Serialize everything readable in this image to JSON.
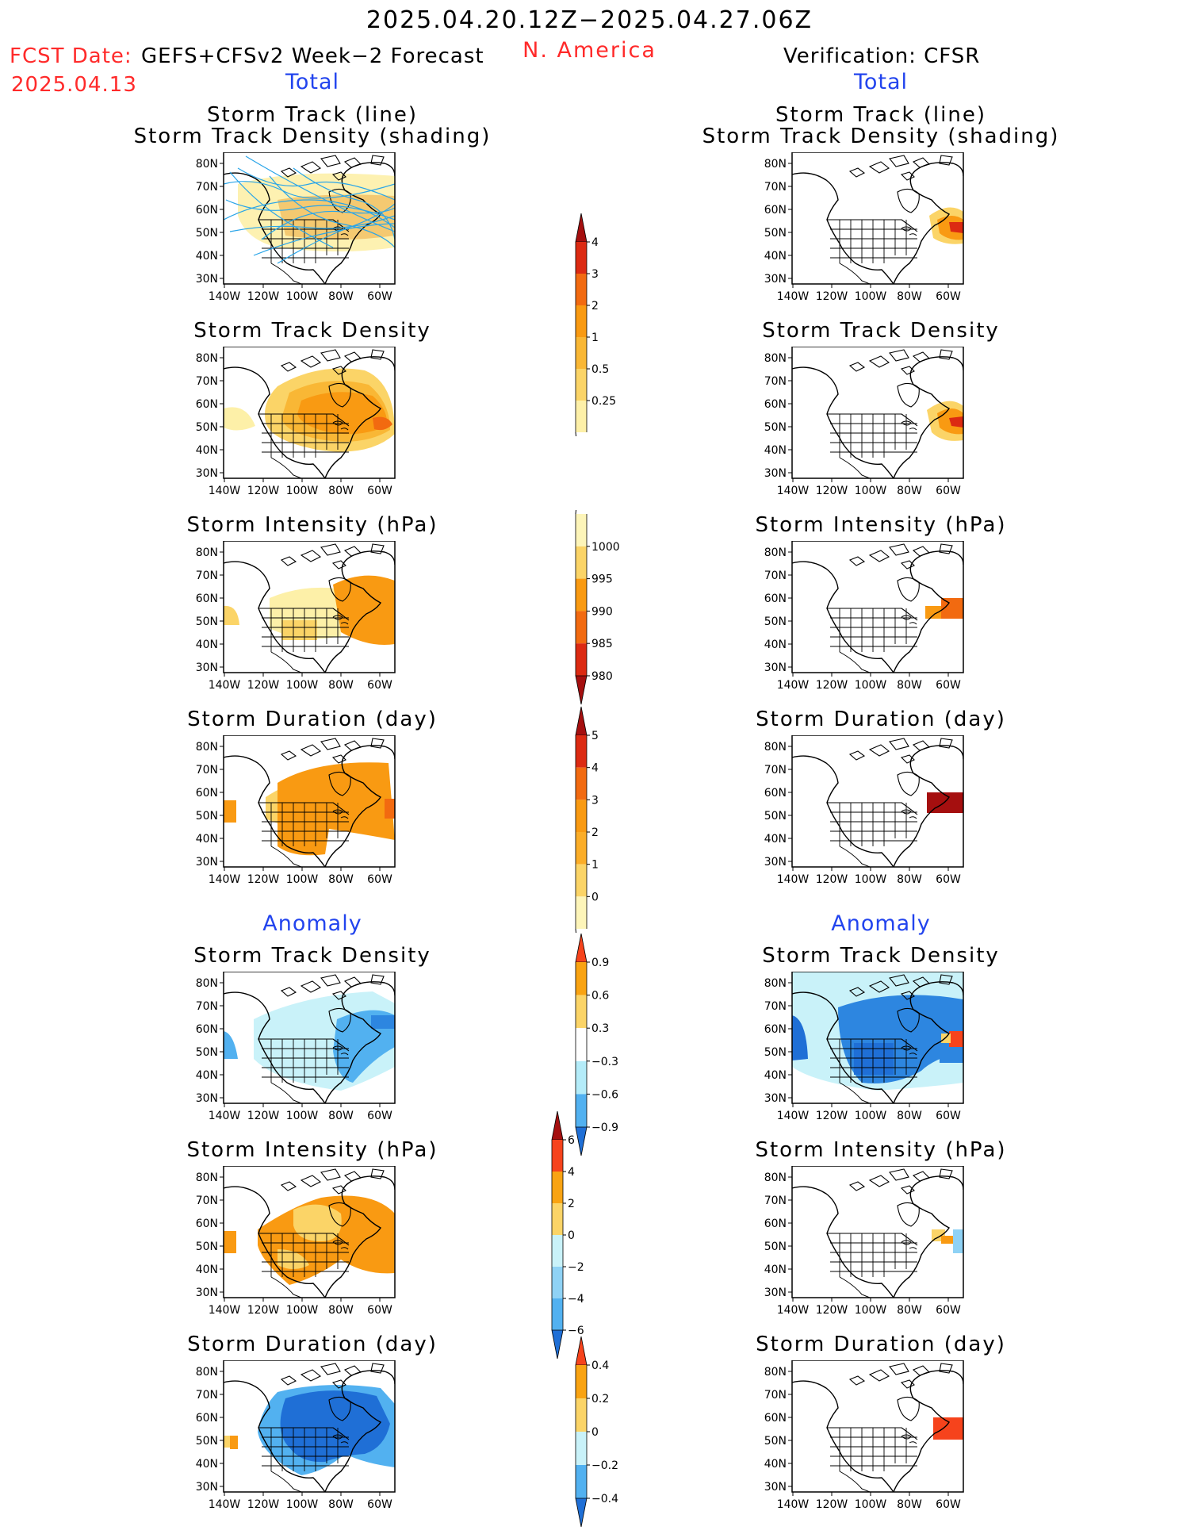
{
  "header": {
    "date_range": "2025.04.20.12Z−2025.04.27.06Z",
    "region": "N. America",
    "fcst_label": "FCST Date:",
    "fcst_model": "GEFS+CFSv2 Week−2 Forecast",
    "fcst_date": "2025.04.13",
    "verification": "Verification: CFSR"
  },
  "sections": {
    "total_left": "Total",
    "total_right": "Total",
    "anomaly_left": "Anomaly",
    "anomaly_right": "Anomaly"
  },
  "panel_titles": {
    "track_line": "Storm Track (line)",
    "track_density_shading": "Storm Track Density (shading)",
    "track_density": "Storm Track Density",
    "intensity": "Storm Intensity (hPa)",
    "duration": "Storm Duration (day)"
  },
  "axes": {
    "lat_labels": [
      "80N",
      "70N",
      "60N",
      "50N",
      "40N",
      "30N"
    ],
    "lon_labels": [
      "140W",
      "120W",
      "100W",
      "80W",
      "60W"
    ]
  },
  "colorbars": {
    "track_density_total": {
      "labels": [
        "4",
        "3",
        "2",
        "1",
        "0.5",
        "0.25"
      ],
      "colors": [
        "#a50f0f",
        "#dc2a12",
        "#f26a10",
        "#f99a12",
        "#f9b735",
        "#fbd467",
        "#fdf0a8"
      ]
    },
    "intensity_total": {
      "labels": [
        "1000",
        "995",
        "990",
        "985",
        "980"
      ],
      "colors": [
        "#fdf5b9",
        "#fbd467",
        "#f99a12",
        "#f26a10",
        "#dc2a12",
        "#a50f0f"
      ]
    },
    "duration_total": {
      "labels": [
        "5",
        "4",
        "3",
        "2",
        "1",
        "0"
      ],
      "colors": [
        "#a50f0f",
        "#dc2a12",
        "#f26a10",
        "#f99a12",
        "#fbad28",
        "#fbd467",
        "#fdf5b9"
      ]
    },
    "track_density_anom": {
      "labels": [
        "0.9",
        "0.6",
        "0.3",
        "−0.3",
        "−0.6",
        "−0.9"
      ],
      "colors": [
        "#f6431c",
        "#f9a312",
        "#fbd467",
        "#ffffff",
        "#b4ecf9",
        "#52b1f0",
        "#1f6fd6"
      ]
    },
    "intensity_anom": {
      "labels": [
        "6",
        "4",
        "2",
        "0",
        "−2",
        "−4",
        "−6"
      ],
      "colors": [
        "#a50f0f",
        "#f6431c",
        "#f9a312",
        "#fbd467",
        "#c9f2f9",
        "#8fd2f5",
        "#52b1f0",
        "#1f6fd6"
      ]
    },
    "duration_anom": {
      "labels": [
        "0.4",
        "0.2",
        "0",
        "−0.2",
        "−0.4"
      ],
      "colors": [
        "#f6431c",
        "#f9a312",
        "#fbd467",
        "#c9f2f9",
        "#52b1f0",
        "#1f6fd6"
      ]
    }
  }
}
